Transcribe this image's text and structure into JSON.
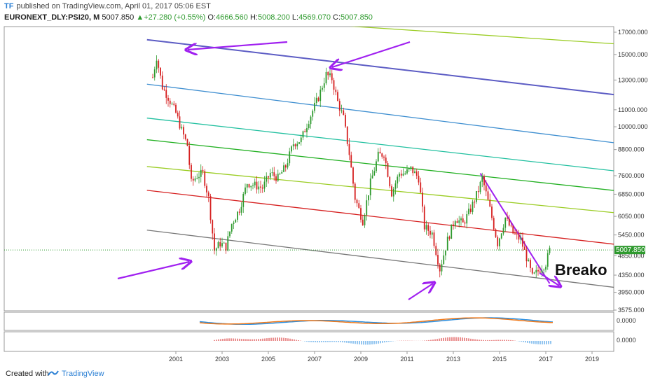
{
  "header": {
    "author": "TF",
    "published_text": "published on TradingView.com, April 01, 2017 05:06 EST",
    "symbol": "EURONEXT_DLY:PSI20, M",
    "last": "5007.850",
    "change": "+27.280 (+0.55%)",
    "open_label": "O:",
    "open": "4666.560",
    "high_label": "H:",
    "high": "5008.200",
    "low_label": "L:",
    "low": "4569.070",
    "close_label": "C:",
    "close": "5007.850"
  },
  "colors": {
    "up": "#2e9a2e",
    "down": "#d62020",
    "arrow": "#a020f0",
    "channel_top": "#5c5cc4",
    "fib_blue": "#3e8ed0",
    "fib_teal": "#22c0a0",
    "fib_green": "#22b022",
    "fib_lime": "#9acc22",
    "red_line": "#d62020",
    "bottom_line": "#777777",
    "macd": "#2a8ee0",
    "signal": "#f07818"
  },
  "annotation": {
    "breakout_text": "Breako"
  },
  "chart_data": {
    "type": "candlestick",
    "title": "",
    "y_scale": "log",
    "y_ticks": [
      "17000.000",
      "15000.000",
      "13000.000",
      "11000.000",
      "10000.000",
      "8800.000",
      "7600.000",
      "6850.000",
      "6050.000",
      "5450.000",
      "4850.000",
      "4350.000",
      "3950.000",
      "3575.000"
    ],
    "x_ticks": [
      "2001",
      "2003",
      "2005",
      "2007",
      "2009",
      "2011",
      "2013",
      "2015",
      "2017",
      "2019"
    ],
    "last_price_label": "5007.850",
    "price_path": [
      [
        "2000-01",
        13200
      ],
      [
        "2000-03",
        14800
      ],
      [
        "2000-06",
        12500
      ],
      [
        "2000-09",
        11800
      ],
      [
        "2001-01",
        10800
      ],
      [
        "2001-04",
        9800
      ],
      [
        "2001-07",
        9000
      ],
      [
        "2001-09",
        7300
      ],
      [
        "2001-12",
        7600
      ],
      [
        "2002-03",
        7700
      ],
      [
        "2002-06",
        6700
      ],
      [
        "2002-09",
        5000
      ],
      [
        "2002-12",
        5200
      ],
      [
        "2003-03",
        5100
      ],
      [
        "2003-06",
        5800
      ],
      [
        "2003-10",
        6300
      ],
      [
        "2004-02",
        7300
      ],
      [
        "2004-06",
        7200
      ],
      [
        "2004-10",
        7100
      ],
      [
        "2005-02",
        7700
      ],
      [
        "2005-06",
        7500
      ],
      [
        "2005-10",
        8000
      ],
      [
        "2006-02",
        9100
      ],
      [
        "2006-06",
        9300
      ],
      [
        "2006-10",
        10400
      ],
      [
        "2007-03",
        11800
      ],
      [
        "2007-07",
        13400
      ],
      [
        "2007-10",
        13100
      ],
      [
        "2008-01",
        11500
      ],
      [
        "2008-04",
        10500
      ],
      [
        "2008-07",
        8600
      ],
      [
        "2008-10",
        6700
      ],
      [
        "2009-02",
        5900
      ],
      [
        "2009-06",
        7300
      ],
      [
        "2009-10",
        8500
      ],
      [
        "2010-01",
        8600
      ],
      [
        "2010-05",
        6900
      ],
      [
        "2010-09",
        7700
      ],
      [
        "2010-12",
        7700
      ],
      [
        "2011-03",
        7900
      ],
      [
        "2011-07",
        7500
      ],
      [
        "2011-10",
        5700
      ],
      [
        "2012-02",
        5500
      ],
      [
        "2012-06",
        4500
      ],
      [
        "2012-10",
        5300
      ],
      [
        "2013-02",
        6000
      ],
      [
        "2013-06",
        5800
      ],
      [
        "2013-10",
        6300
      ],
      [
        "2014-02",
        7000
      ],
      [
        "2014-04",
        7500
      ],
      [
        "2014-08",
        6300
      ],
      [
        "2014-12",
        5200
      ],
      [
        "2015-04",
        6000
      ],
      [
        "2015-08",
        5500
      ],
      [
        "2015-12",
        5300
      ],
      [
        "2016-03",
        4800
      ],
      [
        "2016-06",
        4300
      ],
      [
        "2016-10",
        4500
      ],
      [
        "2017-01",
        4650
      ],
      [
        "2017-03",
        5008
      ]
    ],
    "trendlines": [
      {
        "name": "channel-top",
        "from": [
          "1999-10",
          16300
        ],
        "to": [
          "2020-12",
          11800
        ]
      },
      {
        "name": "fib-upper-green",
        "from": [
          "2008-06",
          17600
        ],
        "to": [
          "2020-12",
          15800
        ]
      },
      {
        "name": "fib-blue",
        "from": [
          "1999-10",
          12700
        ],
        "to": [
          "2020-12",
          9000
        ]
      },
      {
        "name": "fib-teal",
        "from": [
          "1999-10",
          10500
        ],
        "to": [
          "2020-12",
          7700
        ]
      },
      {
        "name": "fib-green",
        "from": [
          "1999-10",
          9300
        ],
        "to": [
          "2020-12",
          6900
        ]
      },
      {
        "name": "fib-lime",
        "from": [
          "1999-10",
          8000
        ],
        "to": [
          "2020-12",
          6100
        ]
      },
      {
        "name": "red-line",
        "from": [
          "1999-10",
          7000
        ],
        "to": [
          "2020-12",
          5100
        ]
      },
      {
        "name": "channel-bottom",
        "from": [
          "1999-10",
          5600
        ],
        "to": [
          "2020-12",
          4000
        ]
      },
      {
        "name": "downtrend",
        "from": [
          "2014-03",
          7700
        ],
        "to": [
          "2017-03",
          4150
        ]
      }
    ],
    "grid": false,
    "legend": "none"
  },
  "macd_panel": {
    "tick_label": "0.0000"
  },
  "histogram_panel": {
    "tick_label": "0.0000"
  },
  "footer": {
    "created_with": "Created with",
    "brand": "TradingView"
  }
}
